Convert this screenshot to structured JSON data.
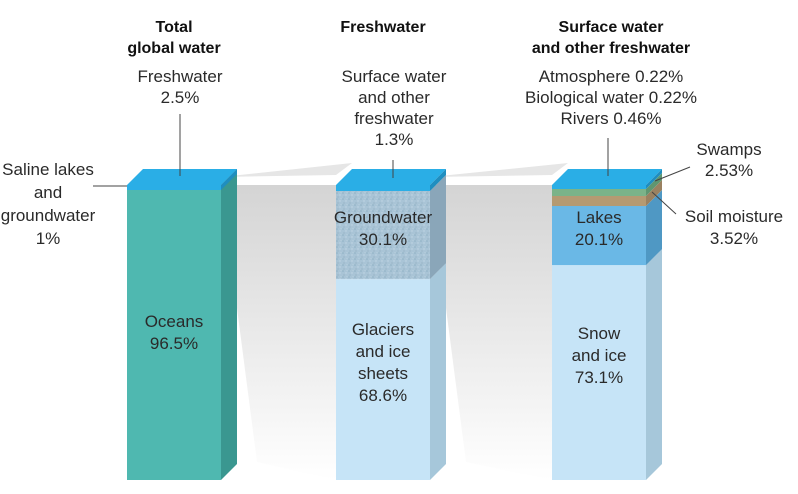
{
  "chart_data": {
    "type": "stacked-bar",
    "columns": [
      {
        "title_lines": [
          "Total",
          "global water"
        ],
        "segments": [
          {
            "name": "Oceans",
            "value": 96.5,
            "label_lines": [
              "Oceans",
              "96.5%"
            ]
          },
          {
            "name": "Saline lakes and groundwater",
            "value": 1,
            "label_lines": [
              "Saline lakes",
              "and",
              "groundwater",
              "1%"
            ]
          },
          {
            "name": "Freshwater",
            "value": 2.5,
            "label_lines": [
              "Freshwater",
              "2.5%"
            ]
          }
        ]
      },
      {
        "title_lines": [
          "Freshwater"
        ],
        "segments": [
          {
            "name": "Glaciers and ice sheets",
            "value": 68.6,
            "label_lines": [
              "Glaciers",
              "and ice",
              "sheets",
              "68.6%"
            ]
          },
          {
            "name": "Groundwater",
            "value": 30.1,
            "label_lines": [
              "Groundwater",
              "30.1%"
            ]
          },
          {
            "name": "Surface water and other freshwater",
            "value": 1.3,
            "label_lines": [
              "Surface water",
              "and other",
              "freshwater",
              "1.3%"
            ]
          }
        ]
      },
      {
        "title_lines": [
          "Surface water",
          "and other freshwater"
        ],
        "segments": [
          {
            "name": "Snow and ice",
            "value": 73.1,
            "label_lines": [
              "Snow",
              "and ice",
              "73.1%"
            ]
          },
          {
            "name": "Lakes",
            "value": 20.1,
            "label_lines": [
              "Lakes",
              "20.1%"
            ]
          },
          {
            "name": "Soil moisture",
            "value": 3.52,
            "label_lines": [
              "Soil moisture",
              "3.52%"
            ]
          },
          {
            "name": "Swamps",
            "value": 2.53,
            "label_lines": [
              "Swamps",
              "2.53%"
            ]
          },
          {
            "name": "Rivers",
            "value": 0.46,
            "label_lines": [
              "Rivers 0.46%"
            ]
          },
          {
            "name": "Biological water",
            "value": 0.22,
            "label_lines": [
              "Biological water 0.22%"
            ]
          },
          {
            "name": "Atmosphere",
            "value": 0.22,
            "label_lines": [
              "Atmosphere 0.22%"
            ]
          }
        ]
      }
    ],
    "colors": {
      "ocean_front": "#4fb8b0",
      "ocean_side": "#3a9790",
      "top_blue": "#2aaee6",
      "top_blue_side": "#1f8ec0",
      "ice_front": "#c6e4f7",
      "ice_side": "#a6c7da",
      "ground_front": "#a9c4d6",
      "ground_side": "#8aa6b9",
      "lake_front": "#6ab8e6",
      "lake_side": "#4f98c4",
      "soil": "#b59a72",
      "swamp": "#7bb389",
      "river": "#2aaee6",
      "funnel": "#dcdcdc",
      "text": "#2a2a2a"
    }
  }
}
